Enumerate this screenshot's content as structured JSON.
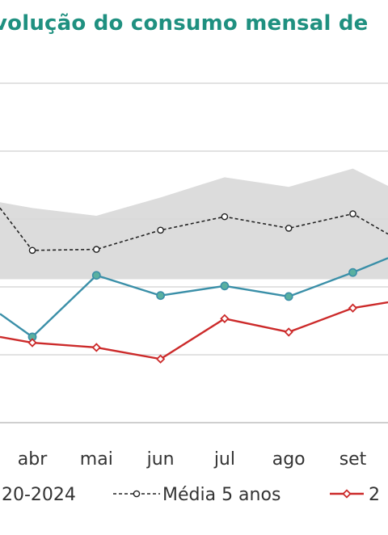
{
  "chart_data": {
    "type": "line",
    "title": "volução do consumo mensal de",
    "categories": [
      "abr",
      "mai",
      "jun",
      "jul",
      "ago",
      "set"
    ],
    "ylim": [
      0,
      100
    ],
    "grid": true,
    "band": {
      "name": "20-2024",
      "color": "#dcdcdc",
      "upper": [
        0.82,
        0.74,
        0.93,
        1.14,
        1.04,
        1.23
      ],
      "lower": [
        0.08,
        0.08,
        0.08,
        0.08,
        0.08,
        0.08
      ]
    },
    "series": [
      {
        "name": "Média 5 anos",
        "color": "#222222",
        "values": [
          0.38,
          0.39,
          0.59,
          0.73,
          0.61,
          0.76
        ]
      },
      {
        "name": "",
        "color": "#3a8fa8",
        "values": [
          -0.52,
          0.12,
          -0.09,
          0.01,
          -0.1,
          0.15
        ]
      },
      {
        "name": "2",
        "color": "#cc2a2a",
        "values": [
          -0.58,
          -0.63,
          -0.75,
          -0.33,
          -0.47,
          -0.22
        ]
      }
    ],
    "legend": {
      "position": "bottom"
    }
  }
}
